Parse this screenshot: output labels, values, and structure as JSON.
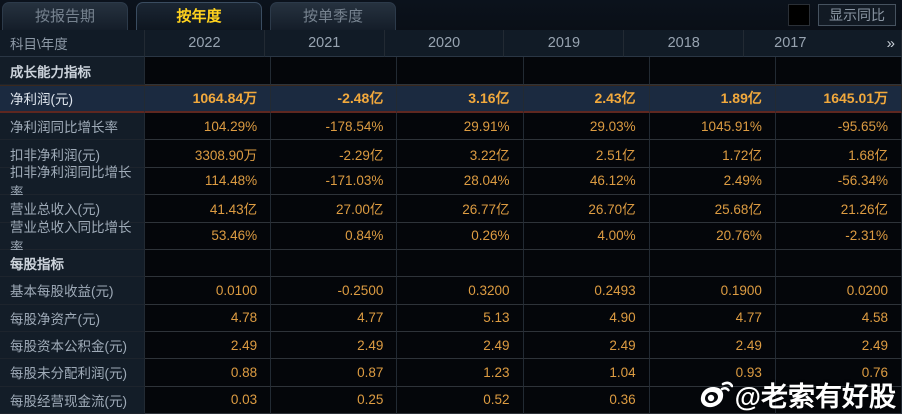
{
  "tabs": [
    {
      "label": "按报告期",
      "active": false
    },
    {
      "label": "按年度",
      "active": true
    },
    {
      "label": "按单季度",
      "active": false
    }
  ],
  "controls": {
    "compare_checkbox_checked": false,
    "compare_button_label": "显示同比"
  },
  "colors": {
    "active_tab_text": "#ffd21e",
    "value_text": "#dd9c42",
    "highlight_row_bg": "#1b2a40",
    "highlight_value_text": "#f2a93c"
  },
  "table": {
    "corner_header": "科目\\年度",
    "year_headers": [
      "2022",
      "2021",
      "2020",
      "2019",
      "2018",
      "2017"
    ],
    "more_years_icon": "»",
    "rows": [
      {
        "type": "section",
        "label": "成长能力指标",
        "values": [
          "",
          "",
          "",
          "",
          "",
          ""
        ]
      },
      {
        "type": "highlight",
        "label": "净利润(元)",
        "values": [
          "1064.84万",
          "-2.48亿",
          "3.16亿",
          "2.43亿",
          "1.89亿",
          "1645.01万"
        ]
      },
      {
        "type": "data",
        "label": "净利润同比增长率",
        "values": [
          "104.29%",
          "-178.54%",
          "29.91%",
          "29.03%",
          "1045.91%",
          "-95.65%"
        ]
      },
      {
        "type": "data",
        "label": "扣非净利润(元)",
        "values": [
          "3308.90万",
          "-2.29亿",
          "3.22亿",
          "2.51亿",
          "1.72亿",
          "1.68亿"
        ]
      },
      {
        "type": "data",
        "label": "扣非净利润同比增长率",
        "values": [
          "114.48%",
          "-171.03%",
          "28.04%",
          "46.12%",
          "2.49%",
          "-56.34%"
        ]
      },
      {
        "type": "data",
        "label": "营业总收入(元)",
        "values": [
          "41.43亿",
          "27.00亿",
          "26.77亿",
          "26.70亿",
          "25.68亿",
          "21.26亿"
        ]
      },
      {
        "type": "data",
        "label": "营业总收入同比增长率",
        "values": [
          "53.46%",
          "0.84%",
          "0.26%",
          "4.00%",
          "20.76%",
          "-2.31%"
        ]
      },
      {
        "type": "section",
        "label": "每股指标",
        "values": [
          "",
          "",
          "",
          "",
          "",
          ""
        ]
      },
      {
        "type": "data",
        "label": "基本每股收益(元)",
        "values": [
          "0.0100",
          "-0.2500",
          "0.3200",
          "0.2493",
          "0.1900",
          "0.0200"
        ]
      },
      {
        "type": "data",
        "label": "每股净资产(元)",
        "values": [
          "4.78",
          "4.77",
          "5.13",
          "4.90",
          "4.77",
          "4.58"
        ]
      },
      {
        "type": "data",
        "label": "每股资本公积金(元)",
        "values": [
          "2.49",
          "2.49",
          "2.49",
          "2.49",
          "2.49",
          "2.49"
        ]
      },
      {
        "type": "data",
        "label": "每股未分配利润(元)",
        "values": [
          "0.88",
          "0.87",
          "1.23",
          "1.04",
          "0.93",
          "0.76"
        ]
      },
      {
        "type": "data",
        "label": "每股经营现金流(元)",
        "values": [
          "0.03",
          "0.25",
          "0.52",
          "0.36",
          "",
          ""
        ]
      }
    ]
  },
  "watermark": {
    "text": "@老索有好股",
    "icon": "weibo-logo"
  }
}
